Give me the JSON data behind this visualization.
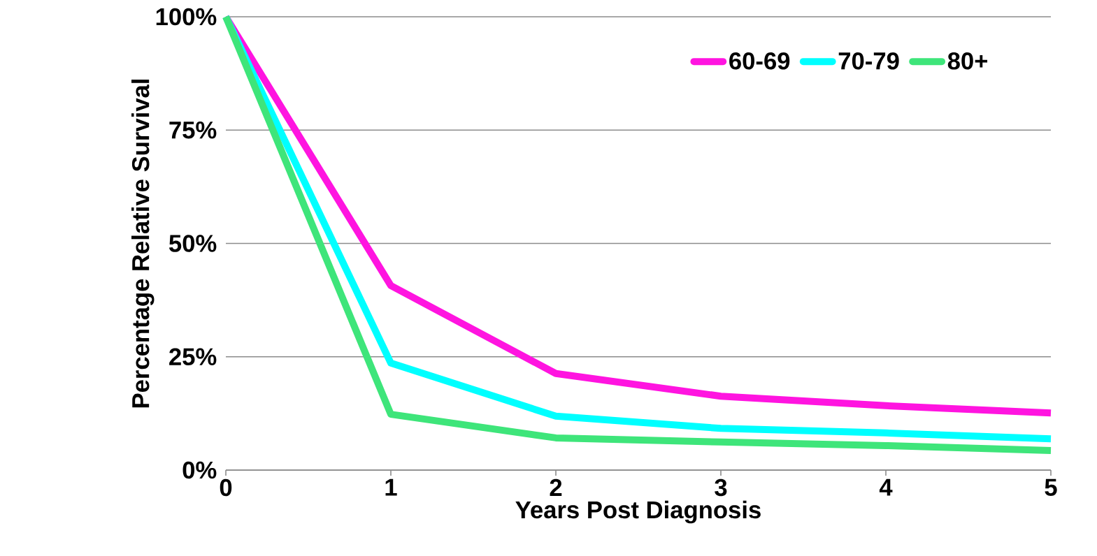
{
  "chart_data": {
    "type": "line",
    "xlabel": "Years Post Diagnosis",
    "ylabel": "Percentage Relative Survival",
    "x": [
      0,
      1,
      2,
      3,
      4,
      5
    ],
    "series": [
      {
        "name": "60-69",
        "color": "#ff14e0",
        "values": [
          100,
          40.7,
          21.3,
          16.3,
          14.2,
          12.6
        ]
      },
      {
        "name": "70-79",
        "color": "#00ffff",
        "values": [
          100,
          23.6,
          11.9,
          9.2,
          8.2,
          6.9
        ]
      },
      {
        "name": "80+",
        "color": "#3ee57a",
        "values": [
          100,
          12.3,
          7.1,
          6.2,
          5.4,
          4.3
        ]
      }
    ],
    "xlim": [
      0,
      5
    ],
    "ylim": [
      0,
      100
    ],
    "xticks": [
      0,
      1,
      2,
      3,
      4,
      5
    ],
    "yticks": [
      {
        "value": 0,
        "label": "0%"
      },
      {
        "value": 25,
        "label": "25%"
      },
      {
        "value": 50,
        "label": "50%"
      },
      {
        "value": 75,
        "label": "75%"
      },
      {
        "value": 100,
        "label": "100%"
      }
    ],
    "grid": "y",
    "legend": "top right",
    "marker": "none",
    "line_style": "solid"
  }
}
